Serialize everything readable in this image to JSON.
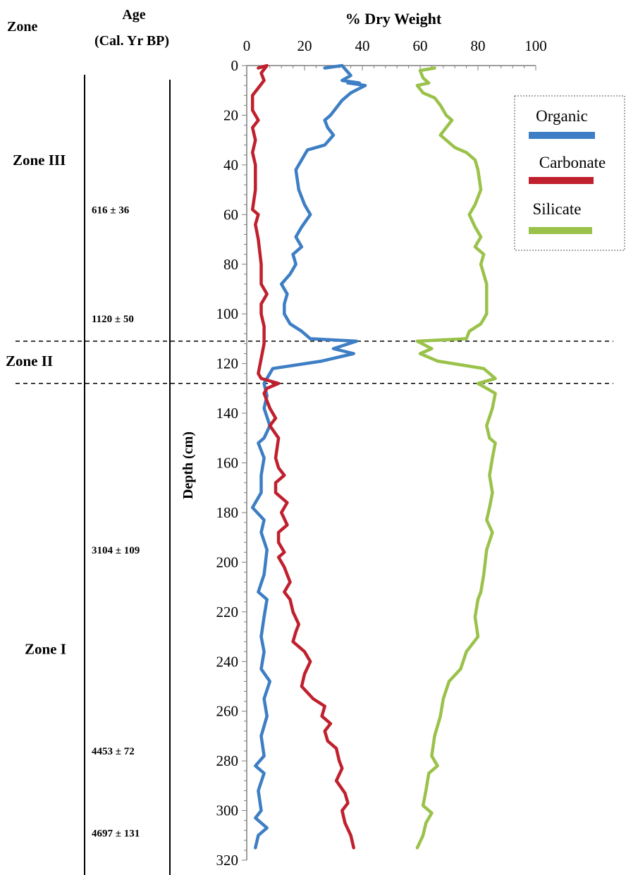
{
  "header": {
    "zone_label": "Zone",
    "age_label_line1": "Age",
    "age_label_line2": "(Cal. Yr BP)",
    "x_title": "%  Dry Weight"
  },
  "zones": [
    {
      "label": "Zone III",
      "depth": 38
    },
    {
      "label": "Zone II",
      "depth": 119
    },
    {
      "label": "Zone I",
      "depth": 235
    }
  ],
  "zone_boundaries": [
    111,
    128
  ],
  "ages": [
    {
      "label": "616 ± 36",
      "depth": 58
    },
    {
      "label": "1120 ± 50",
      "depth": 102
    },
    {
      "label": "3104 ± 109",
      "depth": 195
    },
    {
      "label": "4453 ± 72",
      "depth": 276
    },
    {
      "label": "4697 ± 131",
      "depth": 309
    }
  ],
  "legend": {
    "items": [
      {
        "label": "Organic",
        "color": "#3d7ec4"
      },
      {
        "label": "Carbonate",
        "color": "#c0202e"
      },
      {
        "label": "Silicate",
        "color": "#9ac24a"
      }
    ]
  },
  "chart_data": {
    "type": "line",
    "title": "",
    "xlabel": "%  Dry Weight",
    "ylabel": "Depth (cm)",
    "xlim": [
      0,
      100
    ],
    "ylim": [
      320,
      0
    ],
    "x_ticks": [
      "0",
      "20",
      "40",
      "60",
      "80",
      "100"
    ],
    "y_ticks": [
      "0",
      "20",
      "40",
      "60",
      "80",
      "100",
      "120",
      "140",
      "160",
      "180",
      "200",
      "220",
      "240",
      "260",
      "280",
      "300",
      "320"
    ],
    "x_axis_position": "top",
    "series": [
      {
        "name": "Organic",
        "color": "#3d7ec4",
        "points": [
          [
            27,
            1
          ],
          [
            33,
            0
          ],
          [
            36,
            4
          ],
          [
            33,
            6
          ],
          [
            39,
            7
          ],
          [
            35,
            7
          ],
          [
            41,
            8
          ],
          [
            36,
            11
          ],
          [
            33,
            14
          ],
          [
            31,
            17
          ],
          [
            29,
            20
          ],
          [
            27,
            22
          ],
          [
            28,
            25
          ],
          [
            30,
            28
          ],
          [
            27,
            32
          ],
          [
            21,
            34
          ],
          [
            19,
            38
          ],
          [
            17,
            42
          ],
          [
            18,
            50
          ],
          [
            20,
            56
          ],
          [
            22,
            60
          ],
          [
            19,
            65
          ],
          [
            17,
            69
          ],
          [
            19,
            73
          ],
          [
            16,
            76
          ],
          [
            17,
            80
          ],
          [
            15,
            84
          ],
          [
            12,
            88
          ],
          [
            14,
            92
          ],
          [
            13,
            96
          ],
          [
            13,
            100
          ],
          [
            15,
            104
          ],
          [
            19,
            107
          ],
          [
            22,
            110
          ],
          [
            38,
            111
          ],
          [
            30,
            114
          ],
          [
            37,
            116
          ],
          [
            26,
            119
          ],
          [
            9,
            122
          ],
          [
            7,
            126
          ],
          [
            6,
            128
          ],
          [
            7,
            133
          ],
          [
            6,
            138
          ],
          [
            8,
            145
          ],
          [
            6,
            150
          ],
          [
            4,
            152
          ],
          [
            6,
            158
          ],
          [
            5,
            165
          ],
          [
            5,
            172
          ],
          [
            2,
            178
          ],
          [
            6,
            183
          ],
          [
            5,
            188
          ],
          [
            7,
            195
          ],
          [
            6,
            205
          ],
          [
            4,
            212
          ],
          [
            7,
            215
          ],
          [
            6,
            222
          ],
          [
            5,
            230
          ],
          [
            6,
            236
          ],
          [
            5,
            243
          ],
          [
            8,
            248
          ],
          [
            6,
            255
          ],
          [
            7,
            262
          ],
          [
            5,
            270
          ],
          [
            6,
            278
          ],
          [
            3,
            282
          ],
          [
            6,
            285
          ],
          [
            4,
            292
          ],
          [
            5,
            300
          ],
          [
            3,
            303
          ],
          [
            7,
            307
          ],
          [
            4,
            310
          ],
          [
            3,
            315
          ]
        ]
      },
      {
        "name": "Carbonate",
        "color": "#c0202e",
        "points": [
          [
            4,
            1
          ],
          [
            7,
            0
          ],
          [
            5,
            3
          ],
          [
            6,
            6
          ],
          [
            4,
            9
          ],
          [
            2,
            12
          ],
          [
            2,
            18
          ],
          [
            3,
            20
          ],
          [
            4,
            22
          ],
          [
            2,
            25
          ],
          [
            3,
            30
          ],
          [
            2,
            35
          ],
          [
            3,
            40
          ],
          [
            3,
            50
          ],
          [
            2,
            58
          ],
          [
            4,
            60
          ],
          [
            3,
            64
          ],
          [
            4,
            70
          ],
          [
            5,
            80
          ],
          [
            5,
            88
          ],
          [
            7,
            92
          ],
          [
            5,
            96
          ],
          [
            5,
            100
          ],
          [
            6,
            105
          ],
          [
            6,
            112
          ],
          [
            5,
            118
          ],
          [
            4,
            124
          ],
          [
            5,
            126
          ],
          [
            11,
            128
          ],
          [
            7,
            130
          ],
          [
            6,
            132
          ],
          [
            8,
            138
          ],
          [
            10,
            142
          ],
          [
            8,
            145
          ],
          [
            11,
            150
          ],
          [
            10,
            158
          ],
          [
            11,
            162
          ],
          [
            13,
            165
          ],
          [
            10,
            168
          ],
          [
            10,
            172
          ],
          [
            14,
            176
          ],
          [
            12,
            180
          ],
          [
            14,
            185
          ],
          [
            11,
            188
          ],
          [
            11,
            192
          ],
          [
            13,
            196
          ],
          [
            11,
            198
          ],
          [
            13,
            202
          ],
          [
            15,
            208
          ],
          [
            13,
            212
          ],
          [
            15,
            215
          ],
          [
            16,
            220
          ],
          [
            18,
            225
          ],
          [
            17,
            228
          ],
          [
            16,
            232
          ],
          [
            20,
            236
          ],
          [
            22,
            240
          ],
          [
            20,
            245
          ],
          [
            19,
            250
          ],
          [
            23,
            255
          ],
          [
            27,
            258
          ],
          [
            26,
            262
          ],
          [
            29,
            265
          ],
          [
            27,
            268
          ],
          [
            28,
            272
          ],
          [
            31,
            275
          ],
          [
            32,
            280
          ],
          [
            33,
            283
          ],
          [
            31,
            288
          ],
          [
            34,
            293
          ],
          [
            35,
            297
          ],
          [
            33,
            300
          ],
          [
            34,
            305
          ],
          [
            36,
            310
          ],
          [
            37,
            315
          ]
        ]
      },
      {
        "name": "Silicate",
        "color": "#9ac24a",
        "points": [
          [
            65,
            1
          ],
          [
            60,
            2
          ],
          [
            61,
            5
          ],
          [
            63,
            7
          ],
          [
            59,
            8
          ],
          [
            61,
            11
          ],
          [
            65,
            13
          ],
          [
            67,
            16
          ],
          [
            69,
            20
          ],
          [
            71,
            22
          ],
          [
            69,
            25
          ],
          [
            67,
            28
          ],
          [
            69,
            30
          ],
          [
            72,
            33
          ],
          [
            76,
            35
          ],
          [
            79,
            38
          ],
          [
            80,
            42
          ],
          [
            81,
            50
          ],
          [
            79,
            56
          ],
          [
            77,
            60
          ],
          [
            79,
            65
          ],
          [
            81,
            69
          ],
          [
            79,
            73
          ],
          [
            82,
            76
          ],
          [
            81,
            80
          ],
          [
            82,
            84
          ],
          [
            83,
            88
          ],
          [
            83,
            92
          ],
          [
            83,
            96
          ],
          [
            83,
            100
          ],
          [
            81,
            104
          ],
          [
            77,
            107
          ],
          [
            76,
            110
          ],
          [
            59,
            111
          ],
          [
            64,
            114
          ],
          [
            60,
            116
          ],
          [
            66,
            119
          ],
          [
            82,
            122
          ],
          [
            86,
            126
          ],
          [
            80,
            128
          ],
          [
            83,
            130
          ],
          [
            86,
            132
          ],
          [
            85,
            138
          ],
          [
            83,
            145
          ],
          [
            84,
            150
          ],
          [
            86,
            152
          ],
          [
            85,
            158
          ],
          [
            84,
            165
          ],
          [
            85,
            172
          ],
          [
            84,
            178
          ],
          [
            83,
            183
          ],
          [
            85,
            188
          ],
          [
            83,
            195
          ],
          [
            82,
            205
          ],
          [
            81,
            212
          ],
          [
            80,
            215
          ],
          [
            79,
            222
          ],
          [
            80,
            230
          ],
          [
            76,
            236
          ],
          [
            74,
            243
          ],
          [
            70,
            248
          ],
          [
            68,
            255
          ],
          [
            67,
            262
          ],
          [
            65,
            270
          ],
          [
            64,
            278
          ],
          [
            66,
            282
          ],
          [
            63,
            285
          ],
          [
            62,
            292
          ],
          [
            61,
            298
          ],
          [
            64,
            301
          ],
          [
            62,
            305
          ],
          [
            61,
            310
          ],
          [
            59,
            315
          ]
        ]
      }
    ]
  }
}
